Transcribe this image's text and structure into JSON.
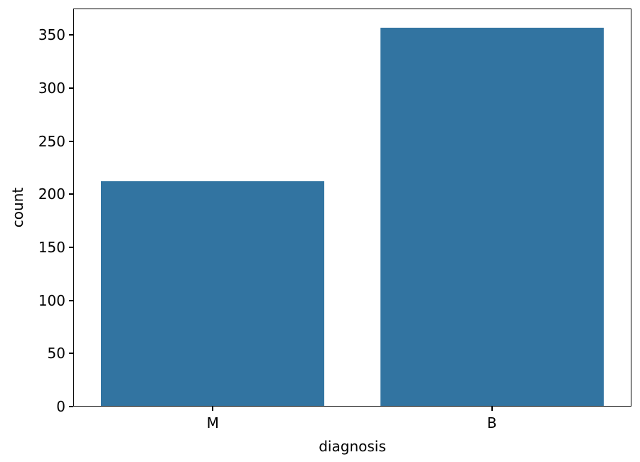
{
  "chart_data": {
    "type": "bar",
    "title": "",
    "categories": [
      "M",
      "B"
    ],
    "values": [
      212,
      357
    ],
    "xlabel": "diagnosis",
    "ylabel": "count",
    "ylim": [
      0,
      375
    ],
    "yticks": [
      0,
      50,
      100,
      150,
      200,
      250,
      300,
      350
    ],
    "bar_color": "#3274A1",
    "bar_width_fraction": 0.8,
    "grid": false,
    "legend": "none",
    "spine_color": "#000000",
    "background_color": "#ffffff"
  }
}
